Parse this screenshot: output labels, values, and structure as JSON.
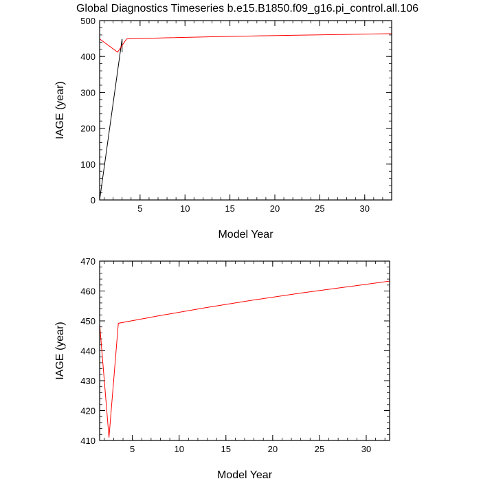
{
  "title": "Global Diagnostics Timeseries b.e15.B1850.f09_g16.pi_control.all.106",
  "chart_data": [
    {
      "type": "line",
      "xlabel": "Model Year",
      "ylabel": "IAGE (year)",
      "xlim": [
        0.5,
        33
      ],
      "ylim": [
        0,
        500
      ],
      "xticks": [
        5,
        10,
        15,
        20,
        25,
        30
      ],
      "yticks": [
        0,
        100,
        200,
        300,
        400,
        500
      ],
      "x_minor_step": 1,
      "y_minor_step": 20,
      "series": [
        {
          "color": "#000000",
          "x": [
            0.5,
            3.0,
            3.0
          ],
          "y": [
            0,
            449,
            412
          ]
        },
        {
          "color": "#ff0000",
          "x": [
            0.5,
            2.5,
            3.5,
            8,
            13,
            18,
            23,
            28,
            33
          ],
          "y": [
            449,
            412,
            449,
            452,
            455,
            457.5,
            459.5,
            461.5,
            463.5
          ]
        }
      ]
    },
    {
      "type": "line",
      "xlabel": "Model Year",
      "ylabel": "IAGE (year)",
      "xlim": [
        1.5,
        32.5
      ],
      "ylim": [
        410,
        470
      ],
      "xticks": [
        5,
        10,
        15,
        20,
        25,
        30
      ],
      "yticks": [
        410,
        420,
        430,
        440,
        450,
        460,
        470
      ],
      "x_minor_step": 1,
      "y_minor_step": 2,
      "series": [
        {
          "color": "#ff0000",
          "x": [
            1.5,
            2.5,
            3.5,
            8,
            13,
            18,
            23,
            28,
            32.5
          ],
          "y": [
            449,
            411,
            449.2,
            451.8,
            454.5,
            457,
            459.3,
            461.4,
            463.3
          ]
        }
      ]
    }
  ]
}
